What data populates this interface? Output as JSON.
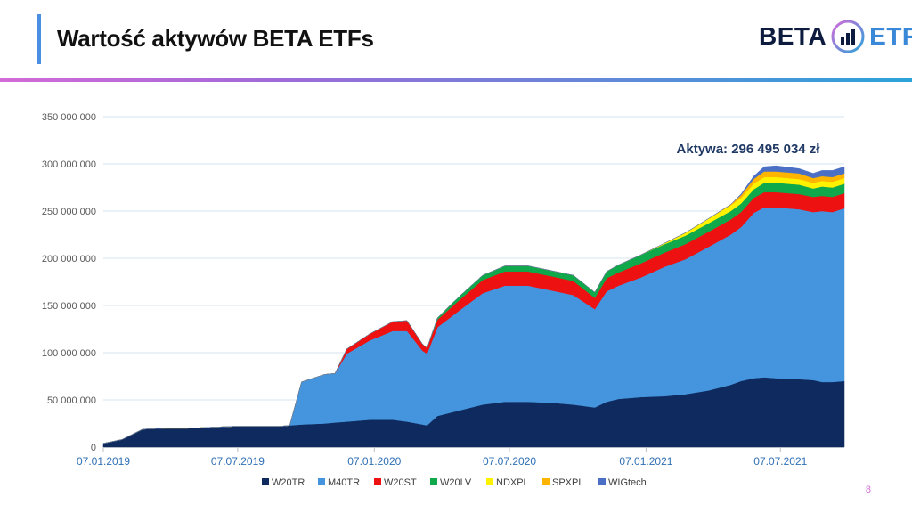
{
  "header": {
    "title": "Wartość aktywów BETA ETFs"
  },
  "logo": {
    "part1": "BETA",
    "part2": "ETF"
  },
  "page_number": "8",
  "colors": {
    "W20TR": "#0f2a5e",
    "M40TR": "#4495dd",
    "W20ST": "#ee1111",
    "W20LV": "#0fa84a",
    "NDXPL": "#fff200",
    "SPXPL": "#ffb400",
    "WIGtech": "#4a6fc4"
  },
  "chart_data": {
    "type": "area",
    "stacked": true,
    "annotation": "Aktywa: 296 495 034 zł",
    "ylim": [
      0,
      350000000
    ],
    "yticks": [
      0,
      50000000,
      100000000,
      150000000,
      200000000,
      250000000,
      300000000,
      350000000
    ],
    "ytick_labels": [
      "0",
      "50 000 000",
      "100 000 000",
      "150 000 000",
      "200 000 000",
      "250 000 000",
      "300 000 000",
      "350 000 000"
    ],
    "xticks": [
      "07.01.2019",
      "07.07.2019",
      "07.01.2020",
      "07.07.2020",
      "07.01.2021",
      "07.07.2021"
    ],
    "x": [
      "2019-01-07",
      "2019-02-01",
      "2019-03-01",
      "2019-04-01",
      "2019-05-01",
      "2019-06-01",
      "2019-07-01",
      "2019-08-01",
      "2019-09-01",
      "2019-09-15",
      "2019-10-01",
      "2019-11-01",
      "2019-11-15",
      "2019-12-01",
      "2020-01-01",
      "2020-02-01",
      "2020-02-20",
      "2020-03-12",
      "2020-03-18",
      "2020-04-01",
      "2020-05-01",
      "2020-06-01",
      "2020-07-01",
      "2020-08-01",
      "2020-09-01",
      "2020-10-01",
      "2020-10-30",
      "2020-11-15",
      "2020-12-01",
      "2021-01-01",
      "2021-02-01",
      "2021-03-01",
      "2021-04-01",
      "2021-05-01",
      "2021-05-15",
      "2021-06-01",
      "2021-06-15",
      "2021-07-01",
      "2021-08-01",
      "2021-08-20",
      "2021-09-01",
      "2021-09-15",
      "2021-10-01"
    ],
    "series": [
      {
        "name": "W20TR",
        "values": [
          4,
          8,
          19,
          20,
          20,
          21,
          22,
          22,
          22,
          23,
          24,
          25,
          26,
          27,
          29,
          29,
          27,
          24,
          23,
          33,
          39,
          45,
          48,
          48,
          47,
          45,
          42,
          48,
          51,
          53,
          54,
          56,
          60,
          66,
          70,
          73,
          74,
          73,
          72,
          71,
          69,
          69,
          70
        ]
      },
      {
        "name": "M40TR",
        "values": [
          0,
          0,
          0,
          0,
          0,
          0,
          0,
          0,
          0,
          0,
          45,
          52,
          52,
          72,
          84,
          94,
          96,
          78,
          76,
          94,
          106,
          118,
          123,
          123,
          119,
          116,
          104,
          117,
          120,
          127,
          137,
          143,
          152,
          159,
          163,
          175,
          180,
          181,
          180,
          178,
          181,
          180,
          183
        ]
      },
      {
        "name": "W20ST",
        "values": [
          0,
          0,
          0,
          0,
          0,
          0,
          0,
          0,
          0,
          0,
          0,
          0,
          0,
          5,
          7,
          10,
          11,
          7,
          6,
          8,
          11,
          14,
          15,
          15,
          15,
          15,
          12,
          14,
          14,
          15,
          15,
          16,
          16,
          16,
          16,
          16,
          16,
          16,
          16,
          16,
          16,
          16,
          16
        ]
      },
      {
        "name": "W20LV",
        "values": [
          0,
          0,
          0,
          0,
          0,
          0,
          0,
          0,
          0,
          0,
          0,
          0,
          0,
          0,
          0,
          0,
          0,
          0,
          0,
          2,
          4,
          5,
          6,
          6,
          6,
          6,
          6,
          7,
          8,
          9,
          9,
          9,
          9,
          9,
          9,
          9,
          10,
          10,
          10,
          9,
          10,
          10,
          10
        ]
      },
      {
        "name": "NDXPL",
        "values": [
          0,
          0,
          0,
          0,
          0,
          0,
          0,
          0,
          0,
          0,
          0,
          0,
          0,
          0,
          0,
          0,
          0,
          0,
          0,
          0,
          0,
          0,
          0,
          0,
          0,
          0,
          0,
          0,
          0,
          0,
          1,
          3,
          5,
          6,
          6,
          6,
          6,
          6,
          6,
          6,
          6,
          6,
          6
        ]
      },
      {
        "name": "SPXPL",
        "values": [
          0,
          0,
          0,
          0,
          0,
          0,
          0,
          0,
          0,
          0,
          0,
          0,
          0,
          0,
          0,
          0,
          0,
          0,
          0,
          0,
          0,
          0,
          0,
          0,
          0,
          0,
          0,
          0,
          0,
          0,
          0,
          0,
          0,
          1,
          3,
          5,
          6,
          6,
          6,
          5,
          5,
          5,
          5
        ]
      },
      {
        "name": "WIGtech",
        "values": [
          0,
          0,
          0,
          0,
          0,
          0,
          0,
          0,
          0,
          0,
          0,
          0,
          0,
          0,
          0,
          0,
          0,
          0,
          0,
          0,
          0,
          0,
          0,
          0,
          0,
          0,
          0,
          0,
          0,
          0,
          0,
          0,
          0,
          0,
          1,
          3,
          5,
          6,
          5,
          5,
          6,
          7,
          7
        ]
      }
    ],
    "units_note_hidden": ""
  }
}
